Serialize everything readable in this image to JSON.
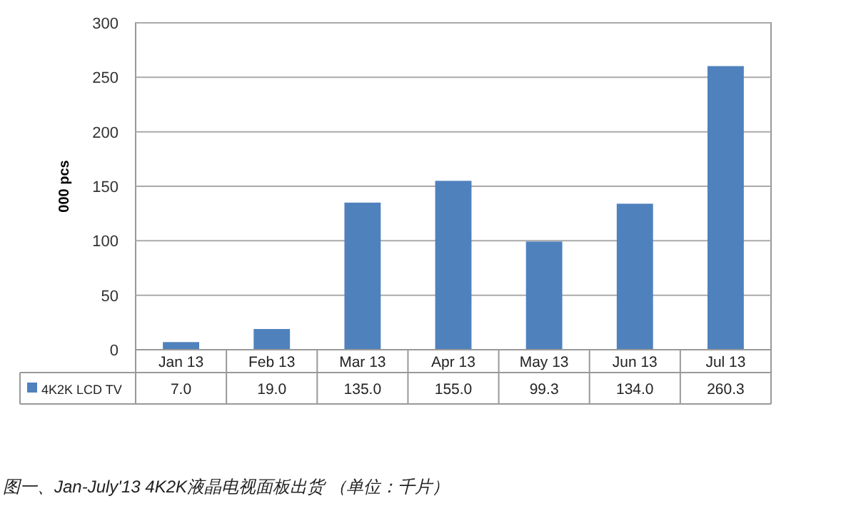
{
  "chart_data": {
    "type": "bar",
    "ylabel": "000 pcs",
    "categories": [
      "Jan 13",
      "Feb 13",
      "Mar 13",
      "Apr 13",
      "May 13",
      "Jun 13",
      "Jul 13"
    ],
    "series": [
      {
        "name": "4K2K LCD TV",
        "color": "#4f81bd",
        "values": [
          7.0,
          19.0,
          135.0,
          155.0,
          99.3,
          134.0,
          260.3
        ],
        "value_labels": [
          "7.0",
          "19.0",
          "135.0",
          "155.0",
          "99.3",
          "134.0",
          "260.3"
        ]
      }
    ],
    "ylim": [
      0,
      300
    ],
    "yticks": [
      0,
      50,
      100,
      150,
      200,
      250,
      300
    ],
    "grid": "y",
    "legend": "bottom left",
    "annotations": [
      "图一、Jan-July'13 4K2K液晶电视面板出货 （单位：千片）"
    ]
  }
}
